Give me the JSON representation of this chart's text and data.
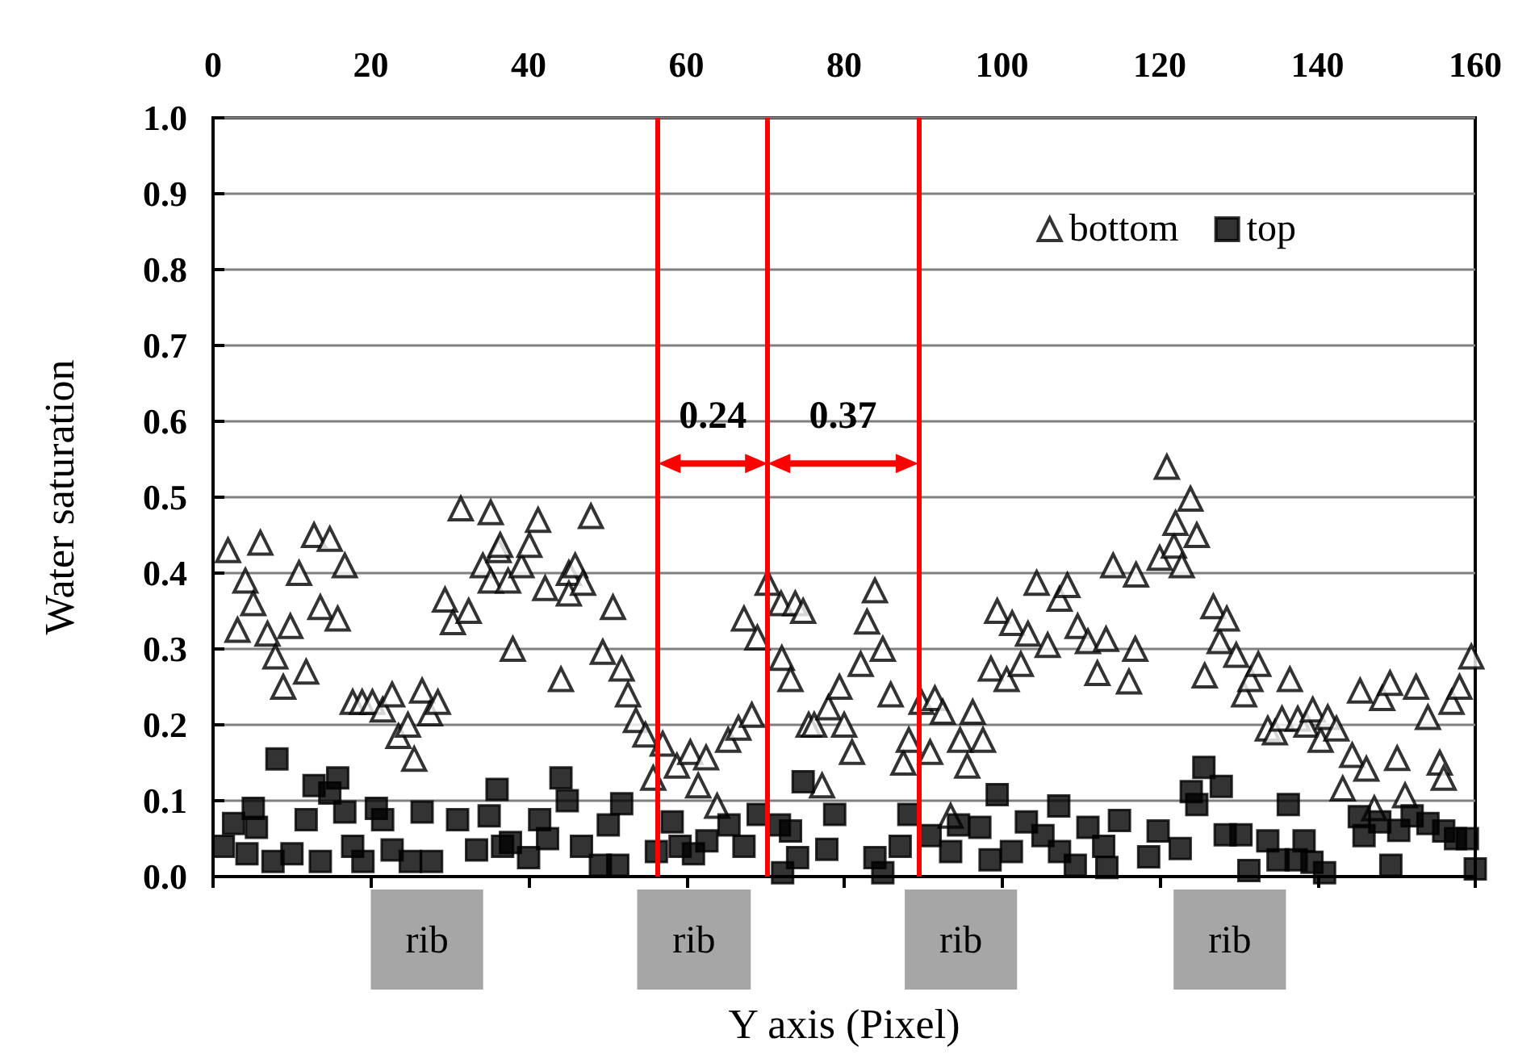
{
  "chart_data": {
    "type": "scatter",
    "xlabel": "Y axis (Pixel)",
    "ylabel": "Water saturation",
    "xlim": [
      0,
      160
    ],
    "xticks": [
      0,
      20,
      40,
      60,
      80,
      100,
      120,
      140,
      160
    ],
    "ylim": [
      0,
      1
    ],
    "yticks": [
      {
        "value": 0,
        "label": "0.0"
      },
      {
        "value": 0.1,
        "label": "0.1"
      },
      {
        "value": 0.2,
        "label": "0.2"
      },
      {
        "value": 0.3,
        "label": "0.3"
      },
      {
        "value": 0.4,
        "label": "0.4"
      },
      {
        "value": 0.5,
        "label": "0.5"
      },
      {
        "value": 0.6,
        "label": "0.6"
      },
      {
        "value": 0.7,
        "label": "0.7"
      },
      {
        "value": 0.8,
        "label": "0.8"
      },
      {
        "value": 0.9,
        "label": "0.9"
      },
      {
        "value": 1,
        "label": "1.0"
      }
    ],
    "grid": "y",
    "legend": "top right",
    "series": [
      {
        "name": "bottom",
        "color": "#000000",
        "marker": "triangle",
        "x": [
          1.9,
          3.1,
          4.1,
          5.1,
          6.0,
          6.9,
          7.9,
          8.9,
          9.8,
          10.9,
          11.8,
          12.8,
          13.6,
          14.8,
          15.8,
          16.7,
          17.7,
          18.9,
          20.2,
          21.5,
          22.7,
          23.5,
          24.7,
          25.5,
          26.5,
          27.5,
          28.5,
          29.4,
          30.4,
          31.4,
          32.4,
          34.2,
          35.2,
          35.2,
          36.2,
          36.4,
          37.4,
          38.0,
          39.1,
          40.1,
          41.2,
          42.1,
          44.1,
          45.1,
          45.1,
          45.9,
          46.9,
          47.9,
          49.4,
          50.7,
          51.8,
          52.6,
          53.6,
          54.8,
          55.8,
          57.0,
          58.8,
          60.5,
          61.5,
          62.5,
          63.9,
          65.3,
          66.6,
          67.3,
          68.3,
          69.0,
          70.3,
          72.0,
          72.1,
          73.2,
          73.8,
          74.8,
          75.5,
          76.2,
          77.2,
          78.0,
          79.4,
          80.0,
          81.0,
          82.1,
          82.9,
          83.9,
          84.9,
          85.9,
          87.5,
          88.2,
          89.8,
          90.9,
          91.5,
          92.5,
          93.5,
          94.7,
          95.6,
          96.3,
          97.6,
          98.6,
          99.4,
          100.6,
          101.3,
          102.4,
          103.3,
          104.4,
          105.8,
          107.3,
          108.3,
          109.6,
          110.9,
          112.1,
          113.2,
          114.1,
          116.1,
          116.9,
          117.0,
          120.0,
          120.9,
          121.8,
          122.0,
          122.8,
          123.9,
          124.7,
          125.7,
          126.8,
          127.6,
          128.5,
          129.7,
          130.7,
          131.5,
          132.5,
          133.7,
          134.6,
          135.5,
          136.5,
          137.5,
          138.6,
          139.4,
          140.4,
          141.3,
          142.4,
          143.2,
          144.4,
          145.4,
          146.2,
          147.2,
          148.2,
          149.2,
          150.1,
          151.1,
          152.5,
          154.0,
          155.5,
          156.0,
          157.0,
          158.0,
          159.5
        ],
        "values": [
          0.43,
          0.325,
          0.39,
          0.36,
          0.44,
          0.32,
          0.29,
          0.25,
          0.33,
          0.4,
          0.27,
          0.45,
          0.355,
          0.445,
          0.34,
          0.41,
          0.23,
          0.23,
          0.23,
          0.22,
          0.24,
          0.185,
          0.2,
          0.155,
          0.245,
          0.215,
          0.23,
          0.365,
          0.335,
          0.485,
          0.35,
          0.41,
          0.39,
          0.48,
          0.43,
          0.437,
          0.39,
          0.3,
          0.41,
          0.437,
          0.47,
          0.38,
          0.26,
          0.4,
          0.373,
          0.41,
          0.387,
          0.475,
          0.296,
          0.355,
          0.274,
          0.24,
          0.206,
          0.187,
          0.13,
          0.175,
          0.146,
          0.164,
          0.12,
          0.157,
          0.093,
          0.18,
          0.196,
          0.34,
          0.213,
          0.315,
          0.387,
          0.36,
          0.288,
          0.26,
          0.36,
          0.35,
          0.2,
          0.2,
          0.12,
          0.223,
          0.25,
          0.2,
          0.164,
          0.28,
          0.336,
          0.377,
          0.3,
          0.24,
          0.15,
          0.18,
          0.23,
          0.164,
          0.235,
          0.217,
          0.08,
          0.18,
          0.146,
          0.217,
          0.18,
          0.274,
          0.35,
          0.26,
          0.334,
          0.28,
          0.32,
          0.387,
          0.305,
          0.366,
          0.384,
          0.33,
          0.31,
          0.268,
          0.313,
          0.41,
          0.257,
          0.3,
          0.398,
          0.42,
          0.54,
          0.436,
          0.466,
          0.41,
          0.498,
          0.45,
          0.265,
          0.356,
          0.31,
          0.34,
          0.292,
          0.24,
          0.26,
          0.28,
          0.195,
          0.19,
          0.208,
          0.26,
          0.208,
          0.2,
          0.22,
          0.18,
          0.21,
          0.195,
          0.116,
          0.16,
          0.245,
          0.142,
          0.09,
          0.235,
          0.255,
          0.156,
          0.107,
          0.25,
          0.21,
          0.15,
          0.13,
          0.23,
          0.25,
          0.29
        ]
      },
      {
        "name": "top",
        "color": "#000000",
        "marker": "square",
        "x": [
          1.3,
          2.6,
          4.3,
          5.1,
          5.5,
          7.6,
          8.1,
          10.0,
          11.8,
          12.8,
          13.6,
          14.8,
          15.8,
          16.7,
          17.7,
          19.0,
          20.7,
          21.5,
          22.7,
          25.0,
          26.5,
          27.7,
          31.0,
          33.4,
          35.0,
          36.0,
          36.7,
          37.7,
          40.0,
          41.4,
          42.4,
          44.1,
          44.9,
          46.7,
          49.1,
          50.1,
          51.3,
          51.8,
          56.2,
          58.2,
          59.2,
          60.9,
          62.6,
          65.4,
          67.3,
          69.1,
          71.8,
          72.2,
          73.2,
          74.1,
          74.8,
          77.8,
          78.8,
          83.9,
          84.9,
          87.1,
          88.2,
          90.9,
          93.5,
          94.5,
          97.2,
          98.5,
          99.4,
          101.2,
          103.1,
          105.2,
          107.2,
          107.3,
          109.3,
          110.9,
          112.9,
          113.3,
          114.9,
          118.6,
          119.8,
          122.6,
          124.0,
          124.7,
          125.6,
          127.8,
          128.3,
          130.3,
          131.3,
          133.7,
          135.0,
          136.3,
          137.3,
          138.3,
          139.3,
          140.9,
          145.3,
          145.9,
          147.9,
          149.3,
          150.3,
          152.0,
          154.0,
          156.0,
          157.5,
          159.0,
          160.0
        ],
        "values": [
          0.04,
          0.07,
          0.03,
          0.09,
          0.065,
          0.02,
          0.155,
          0.03,
          0.075,
          0.12,
          0.02,
          0.11,
          0.13,
          0.085,
          0.04,
          0.02,
          0.09,
          0.075,
          0.035,
          0.02,
          0.085,
          0.02,
          0.075,
          0.035,
          0.08,
          0.115,
          0.04,
          0.045,
          0.025,
          0.075,
          0.05,
          0.13,
          0.1,
          0.04,
          0.015,
          0.068,
          0.015,
          0.096,
          0.033,
          0.072,
          0.04,
          0.03,
          0.047,
          0.068,
          0.04,
          0.082,
          0.068,
          0.005,
          0.06,
          0.025,
          0.125,
          0.036,
          0.082,
          0.025,
          0.005,
          0.04,
          0.082,
          0.054,
          0.033,
          0.068,
          0.065,
          0.022,
          0.108,
          0.033,
          0.072,
          0.054,
          0.093,
          0.033,
          0.015,
          0.065,
          0.04,
          0.012,
          0.074,
          0.026,
          0.06,
          0.037,
          0.112,
          0.095,
          0.144,
          0.119,
          0.055,
          0.055,
          0.008,
          0.047,
          0.022,
          0.095,
          0.022,
          0.047,
          0.019,
          0.005,
          0.079,
          0.054,
          0.072,
          0.015,
          0.061,
          0.08,
          0.07,
          0.06,
          0.05,
          0.05,
          0.01
        ]
      }
    ],
    "ref_lines": [
      {
        "axis": "x",
        "value": 56.4,
        "color": "#ff0000"
      },
      {
        "axis": "x",
        "value": 70.3,
        "color": "#ff0000"
      },
      {
        "axis": "x",
        "value": 89.4,
        "color": "#ff0000"
      }
    ],
    "annotations": [
      "0.24",
      "0.37",
      "rib",
      "rib",
      "rib",
      "rib"
    ]
  }
}
